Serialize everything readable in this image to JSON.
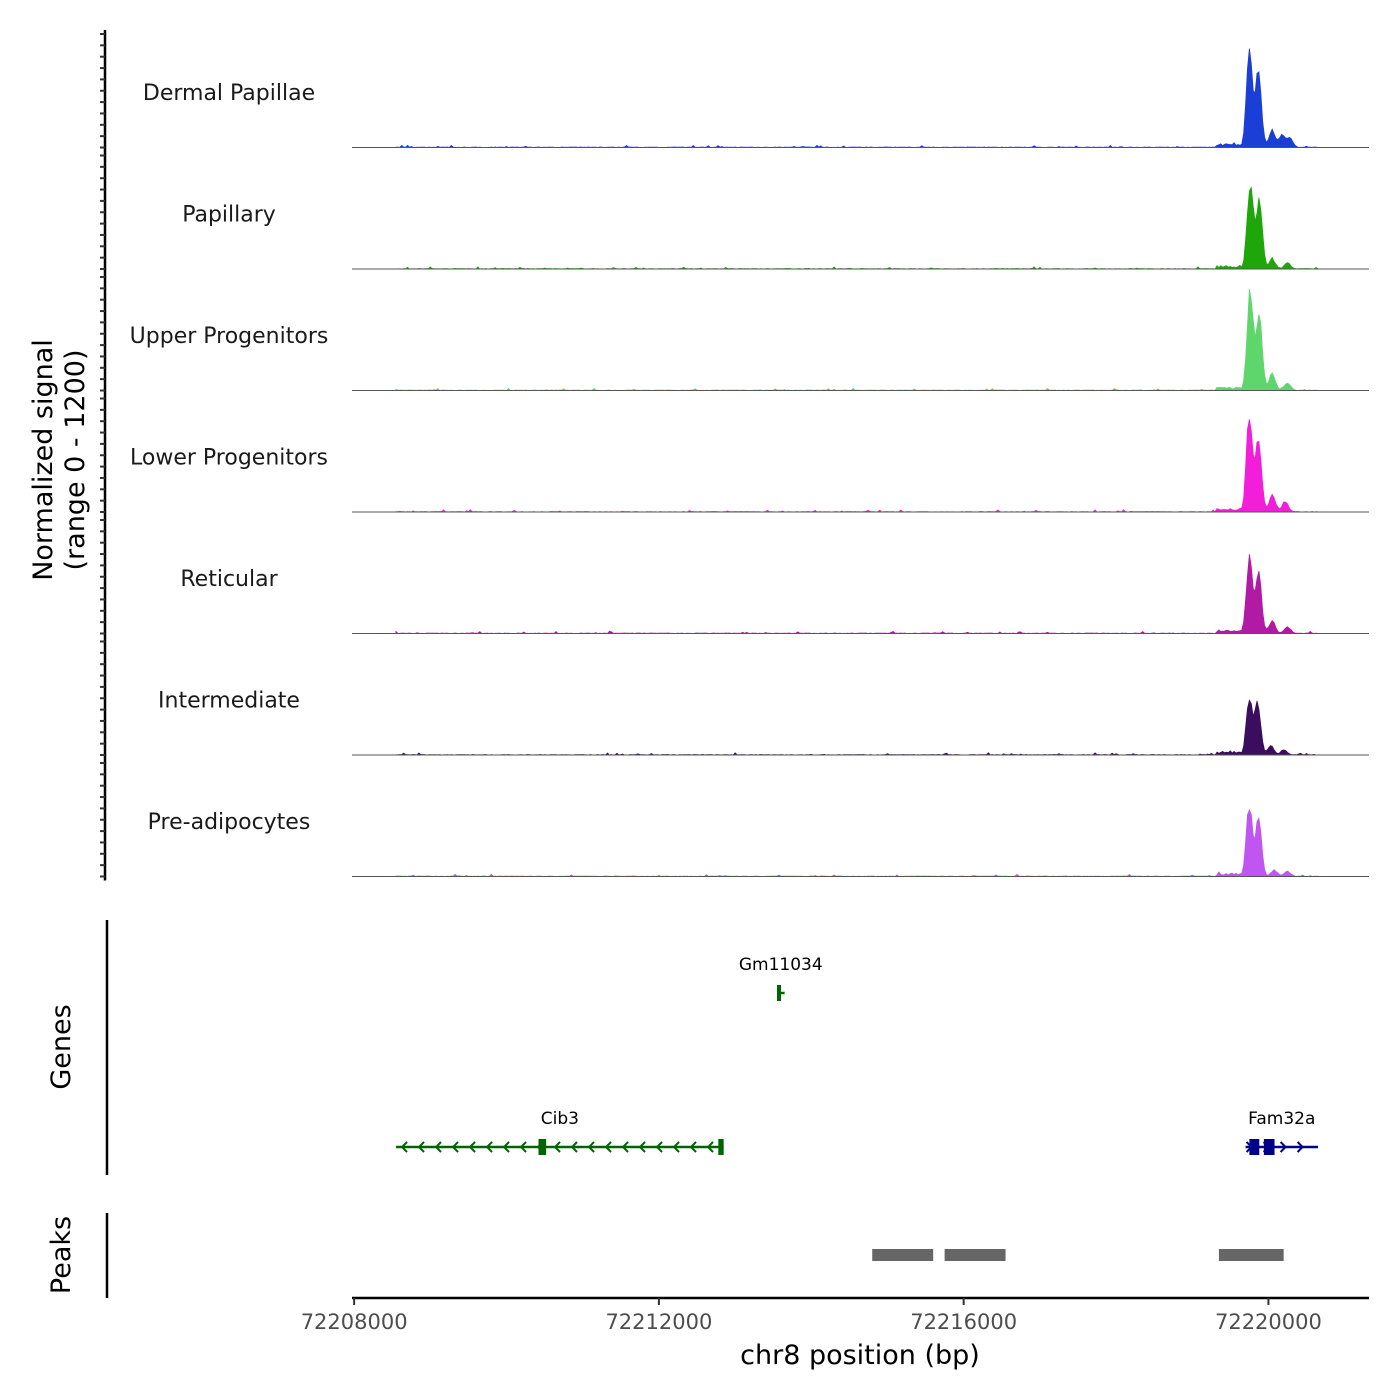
{
  "chart_data": {
    "type": "coverage",
    "chromosome": "chr8",
    "xlabel": "chr8 position (bp)",
    "xlim": [
      72208000,
      72221000
    ],
    "x_ticks": [
      72208000,
      72212000,
      72216000,
      72220000
    ],
    "x_tick_labels": [
      "72208000",
      "72212000",
      "72216000",
      "72220000"
    ],
    "coverage": {
      "ylabel_line1": "Normalized signal",
      "ylabel_line2": "(range 0 - 1200)",
      "ylim": [
        0,
        1200
      ],
      "tracks": [
        {
          "name": "Dermal Papillae",
          "color": "#1a3ed6",
          "peak": 1100,
          "peaks": [
            {
              "pos": 72219750,
              "h": 1100
            },
            {
              "pos": 72219870,
              "h": 900
            },
            {
              "pos": 72220050,
              "h": 200
            },
            {
              "pos": 72220180,
              "h": 150
            },
            {
              "pos": 72220280,
              "h": 110
            }
          ]
        },
        {
          "name": "Papillary",
          "color": "#1fa60a",
          "peak": 1050,
          "peaks": [
            {
              "pos": 72219760,
              "h": 1050
            },
            {
              "pos": 72219880,
              "h": 820
            },
            {
              "pos": 72220050,
              "h": 120
            },
            {
              "pos": 72220250,
              "h": 70
            }
          ]
        },
        {
          "name": "Upper Progenitors",
          "color": "#5ed66c",
          "peak": 1200,
          "peaks": [
            {
              "pos": 72219760,
              "h": 1200
            },
            {
              "pos": 72219880,
              "h": 900
            },
            {
              "pos": 72220050,
              "h": 200
            },
            {
              "pos": 72220250,
              "h": 90
            }
          ]
        },
        {
          "name": "Lower Progenitors",
          "color": "#f21ed9",
          "peak": 1150,
          "peaks": [
            {
              "pos": 72219750,
              "h": 1150
            },
            {
              "pos": 72219870,
              "h": 850
            },
            {
              "pos": 72220050,
              "h": 200
            },
            {
              "pos": 72220220,
              "h": 120
            }
          ]
        },
        {
          "name": "Reticular",
          "color": "#b01aa4",
          "peak": 900,
          "peaks": [
            {
              "pos": 72219750,
              "h": 900
            },
            {
              "pos": 72219870,
              "h": 750
            },
            {
              "pos": 72220050,
              "h": 150
            },
            {
              "pos": 72220250,
              "h": 80
            }
          ]
        },
        {
          "name": "Intermediate",
          "color": "#3a0d5e",
          "peak": 700,
          "peaks": [
            {
              "pos": 72219750,
              "h": 700
            },
            {
              "pos": 72219860,
              "h": 600
            },
            {
              "pos": 72220030,
              "h": 110
            },
            {
              "pos": 72220200,
              "h": 60
            }
          ]
        },
        {
          "name": "Pre-adipocytes",
          "color": "#c055f2",
          "peak": 850,
          "peaks": [
            {
              "pos": 72219750,
              "h": 850
            },
            {
              "pos": 72219870,
              "h": 680
            },
            {
              "pos": 72220080,
              "h": 70
            },
            {
              "pos": 72220250,
              "h": 60
            }
          ]
        }
      ]
    },
    "genes": {
      "ylabel": "Genes",
      "items": [
        {
          "name": "Gm11034",
          "start": 72213550,
          "end": 72213650,
          "strand": "-",
          "color": "#006400",
          "row": 1,
          "exons": [
            {
              "start": 72213550,
              "end": 72213580
            }
          ]
        },
        {
          "name": "Cib3",
          "start": 72208550,
          "end": 72212850,
          "strand": "-",
          "color": "#006400",
          "row": 2,
          "exons": [
            {
              "start": 72210420,
              "end": 72210520
            },
            {
              "start": 72212780,
              "end": 72212850
            }
          ]
        },
        {
          "name": "Fam32a",
          "start": 72219700,
          "end": 72220650,
          "strand": "+",
          "color": "#00008b",
          "row": 2,
          "exons": [
            {
              "start": 72219750,
              "end": 72219880
            },
            {
              "start": 72219940,
              "end": 72220080
            }
          ]
        }
      ]
    },
    "peaks": {
      "ylabel": "Peaks",
      "color": "#666666",
      "regions": [
        {
          "start": 72214800,
          "end": 72215600
        },
        {
          "start": 72215750,
          "end": 72216550
        },
        {
          "start": 72219350,
          "end": 72220200
        }
      ]
    }
  }
}
